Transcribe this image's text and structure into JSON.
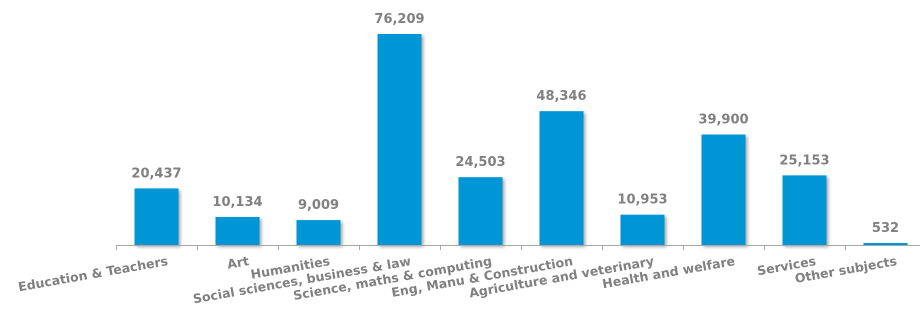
{
  "chart_data": {
    "type": "bar",
    "categories": [
      "Education & Teachers",
      "Art",
      "Humanities",
      "Social sciences, business & law",
      "Science, maths & computing",
      "Eng, Manu & Construction",
      "Agriculture and veterinary",
      "Health and welfare",
      "Services",
      "Other subjects"
    ],
    "values": [
      20437,
      10134,
      9009,
      76209,
      24503,
      48346,
      10953,
      39900,
      25153,
      532
    ],
    "data_labels": [
      "20,437",
      "10,134",
      "9,009",
      "76,209",
      "24,503",
      "48,346",
      "10,953",
      "39,900",
      "25,153",
      "532"
    ],
    "title": "",
    "xlabel": "",
    "ylabel": "",
    "ylim": [
      0,
      80000
    ],
    "grid": false,
    "legend": "none",
    "colors": {
      "bar": "#0096d6",
      "bar_shadow": "#9a9a9a",
      "text": "#808080",
      "axis": "#a6a6a6"
    }
  }
}
